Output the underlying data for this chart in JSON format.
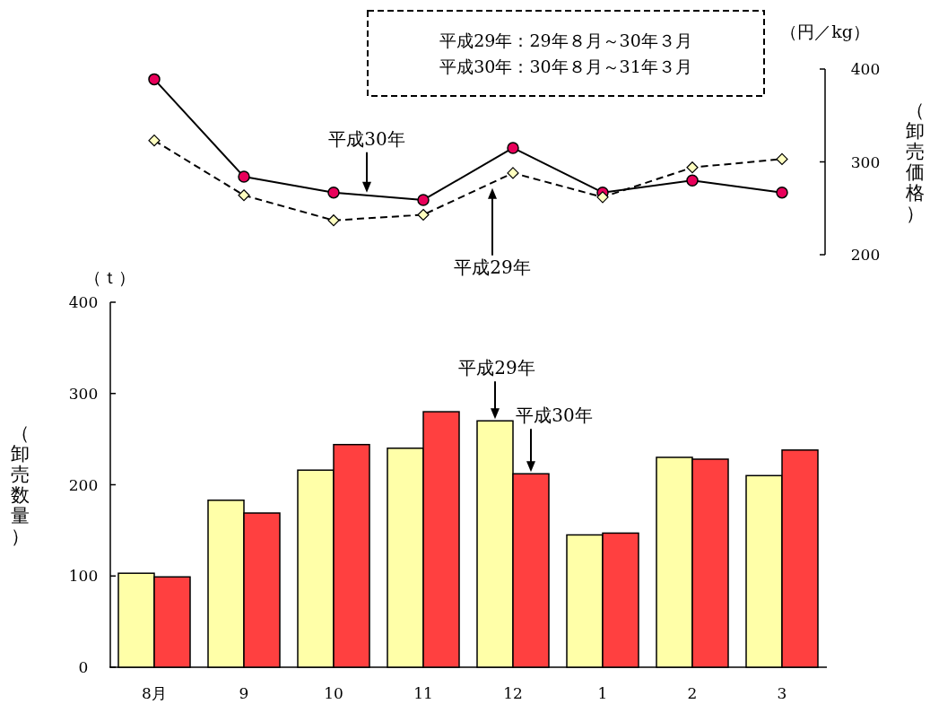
{
  "chart_data": [
    {
      "type": "line",
      "categories": [
        null,
        null,
        null,
        null,
        null,
        null,
        null,
        null
      ],
      "series": [
        {
          "name": "平成30年",
          "color": "#000000",
          "colors": [
            "#e8005a",
            "#e8005a",
            "#e8005a",
            "#e8005a",
            "#e8005a",
            "#e8005a",
            "#e8005a",
            "#e8005a"
          ],
          "values": [
            389,
            284,
            267,
            259,
            315,
            267,
            280,
            267
          ],
          "marker": "circle",
          "line_style": "solid"
        },
        {
          "name": "平成29年",
          "color": "#000000",
          "colors": [
            "#ffffc0",
            "#ffffc0",
            "#ffffc0",
            "#ffffc0",
            "#ffffc0",
            "#ffffc0",
            "#ffffc0",
            "#ffffc0"
          ],
          "values": [
            323,
            264,
            237,
            243,
            288,
            262,
            294,
            303
          ],
          "marker": "diamond",
          "line_style": "dashed"
        }
      ],
      "ylim": [
        200,
        400
      ],
      "yticks": [
        200,
        300,
        400
      ],
      "ylabel": "（卸売価格）",
      "tick_labels": "y",
      "annotations": [
        "平成29年：29年８月～30年３月",
        "平成30年：30年８月～31年３月",
        "（円／kg）"
      ]
    },
    {
      "type": "bar",
      "categories": [
        "8月",
        "9",
        "10",
        "11",
        "12",
        "1",
        "2",
        "3"
      ],
      "series": [
        {
          "color": "#ffffa8",
          "values": [
            103,
            183,
            216,
            240,
            270,
            145,
            230,
            210
          ]
        },
        {
          "color": "#ff4040",
          "values": [
            99,
            169,
            244,
            280,
            212,
            147,
            228,
            238
          ]
        }
      ],
      "ylim": [
        0,
        400
      ],
      "yticks": [
        0,
        100,
        200,
        300,
        400
      ],
      "ylabel": "（卸売数量）",
      "annotations": [
        "（ｔ）",
        {
          "text": "平成29年",
          "x": "12",
          "y": 270
        },
        {
          "text": "平成30年",
          "x": "12",
          "y": 212
        }
      ]
    }
  ]
}
